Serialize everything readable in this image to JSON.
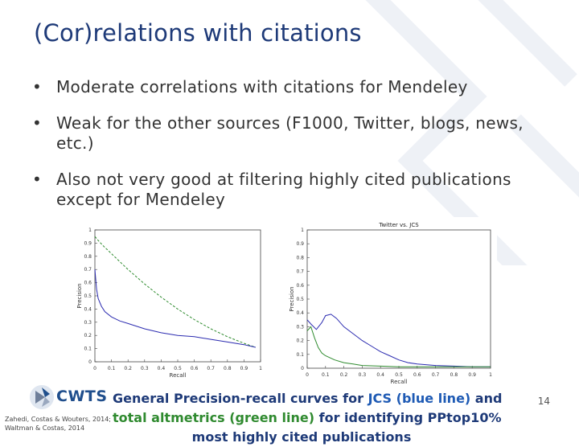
{
  "title": "(Cor)relations with citations",
  "bullets": [
    "Moderate correlations with citations for Mendeley",
    "Weak for the other sources (F1000, Twitter, blogs, news, etc.)",
    "Also not very good at filtering highly cited publications except for Mendeley"
  ],
  "caption": {
    "part1": "General Precision-recall curves for ",
    "jcs": "JCS (blue line)",
    "part2": " and",
    "total": "total altmetrics (green line)",
    "part3": " for identifying PPtop10%",
    "part4": "most highly cited publications"
  },
  "logo_text": "CWTS",
  "citation": [
    "Zahedi, Costas & Wouters, 2014;",
    "Waltman & Costas, 2014"
  ],
  "page_number": "14",
  "colors": {
    "title": "#1e3a78",
    "jcs_line": "#2b2bb0",
    "altmetrics_line": "#2e8b2e"
  },
  "chart_data": [
    {
      "type": "line",
      "title": "",
      "xlabel": "Recall",
      "ylabel": "Precision",
      "xlim": [
        0,
        1
      ],
      "ylim": [
        0,
        1
      ],
      "xticks": [
        "0",
        "0.1",
        "0.2",
        "0.3",
        "0.4",
        "0.5",
        "0.6",
        "0.7",
        "0.8",
        "0.9",
        "1"
      ],
      "yticks": [
        "0",
        "0.1",
        "0.2",
        "0.3",
        "0.4",
        "0.5",
        "0.6",
        "0.7",
        "0.8",
        "0.9",
        "1"
      ],
      "series": [
        {
          "color": "#2e8b2e",
          "x": [
            0.0,
            0.02,
            0.05,
            0.1,
            0.15,
            0.2,
            0.3,
            0.4,
            0.5,
            0.6,
            0.7,
            0.8,
            0.9,
            0.97
          ],
          "y": [
            0.95,
            0.92,
            0.88,
            0.82,
            0.76,
            0.7,
            0.59,
            0.49,
            0.4,
            0.32,
            0.25,
            0.19,
            0.14,
            0.11
          ]
        },
        {
          "color": "#2b2bb0",
          "x": [
            0.0,
            0.01,
            0.02,
            0.04,
            0.06,
            0.1,
            0.15,
            0.2,
            0.3,
            0.4,
            0.5,
            0.6,
            0.7,
            0.8,
            0.9,
            0.97
          ],
          "y": [
            0.7,
            0.55,
            0.48,
            0.42,
            0.38,
            0.34,
            0.31,
            0.29,
            0.25,
            0.22,
            0.2,
            0.19,
            0.17,
            0.15,
            0.13,
            0.11
          ]
        }
      ]
    },
    {
      "type": "line",
      "title": "Twitter vs. JCS",
      "xlabel": "Recall",
      "ylabel": "Precision",
      "xlim": [
        0,
        1
      ],
      "ylim": [
        0,
        1
      ],
      "xticks": [
        "0",
        "0.1",
        "0.2",
        "0.3",
        "0.4",
        "0.5",
        "0.6",
        "0.7",
        "0.8",
        "0.9",
        "1"
      ],
      "yticks": [
        "0",
        "0.1",
        "0.2",
        "0.3",
        "0.4",
        "0.5",
        "0.6",
        "0.7",
        "0.8",
        "0.9",
        "1"
      ],
      "series": [
        {
          "color": "#2b2bb0",
          "x": [
            0.0,
            0.02,
            0.05,
            0.08,
            0.1,
            0.13,
            0.16,
            0.2,
            0.25,
            0.3,
            0.35,
            0.4,
            0.45,
            0.5,
            0.55,
            0.6,
            0.7,
            0.8,
            0.9,
            1.0
          ],
          "y": [
            0.35,
            0.32,
            0.28,
            0.33,
            0.38,
            0.39,
            0.36,
            0.3,
            0.25,
            0.2,
            0.16,
            0.12,
            0.09,
            0.06,
            0.04,
            0.03,
            0.02,
            0.015,
            0.01,
            0.01
          ]
        },
        {
          "color": "#2e8b2e",
          "x": [
            0.0,
            0.02,
            0.04,
            0.06,
            0.08,
            0.1,
            0.15,
            0.2,
            0.25,
            0.3,
            0.4,
            0.5,
            0.6,
            0.7,
            0.8,
            0.9,
            1.0
          ],
          "y": [
            0.27,
            0.3,
            0.22,
            0.15,
            0.11,
            0.09,
            0.06,
            0.04,
            0.03,
            0.02,
            0.015,
            0.01,
            0.01,
            0.01,
            0.01,
            0.01,
            0.01
          ]
        }
      ]
    }
  ]
}
